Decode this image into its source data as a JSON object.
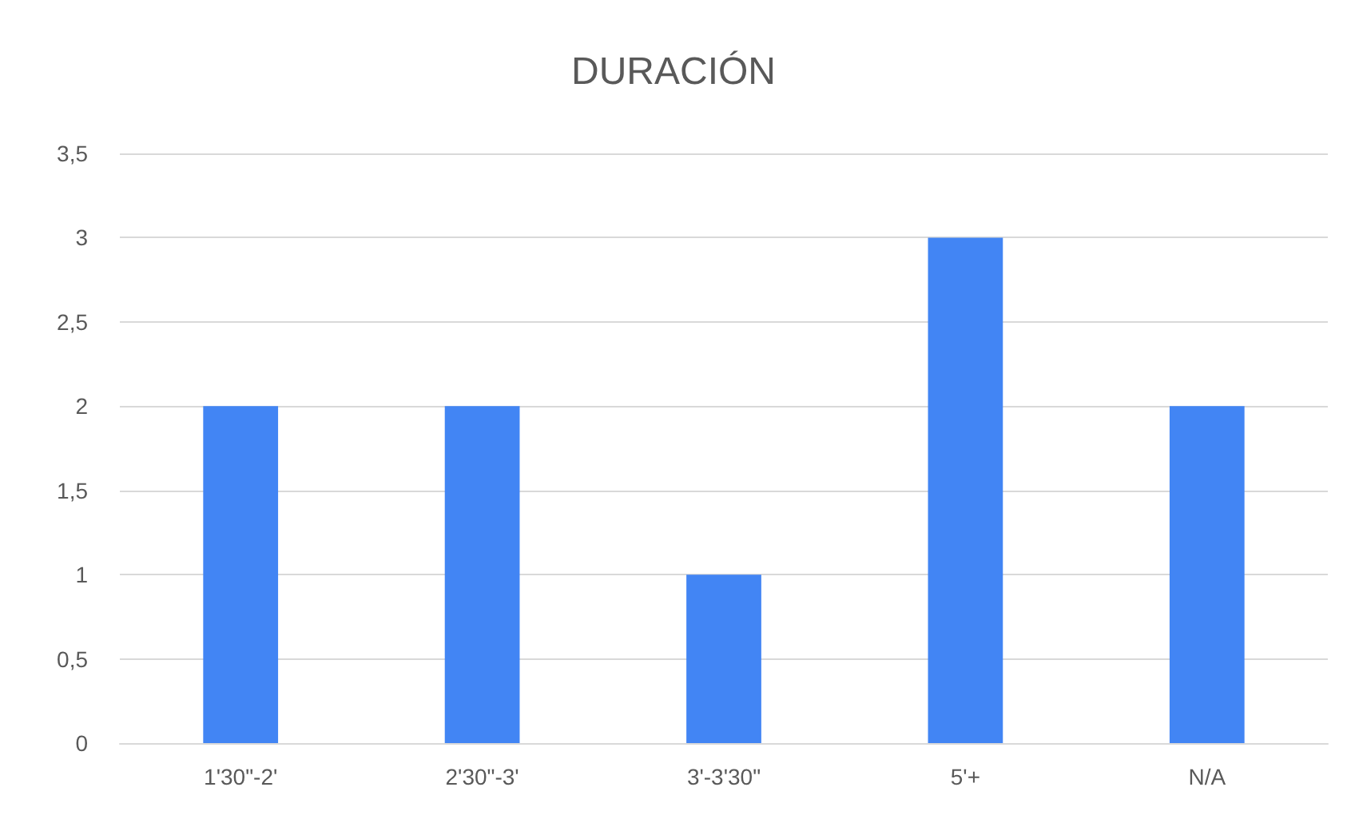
{
  "chart_data": {
    "type": "bar",
    "title": "DURACIÓN",
    "categories": [
      "1'30\"-2'",
      "2'30\"-3'",
      "3'-3'30\"",
      "5'+",
      "N/A"
    ],
    "values": [
      2,
      2,
      1,
      3,
      2
    ],
    "color": "#4285f4",
    "ylim": [
      0,
      3.5
    ],
    "yticks": [
      {
        "value": 0,
        "label": "0"
      },
      {
        "value": 0.5,
        "label": "0,5"
      },
      {
        "value": 1,
        "label": "1"
      },
      {
        "value": 1.5,
        "label": "1,5"
      },
      {
        "value": 2,
        "label": "2"
      },
      {
        "value": 2.5,
        "label": "2,5"
      },
      {
        "value": 3,
        "label": "3"
      },
      {
        "value": 3.5,
        "label": "3,5"
      }
    ],
    "grid": true
  }
}
